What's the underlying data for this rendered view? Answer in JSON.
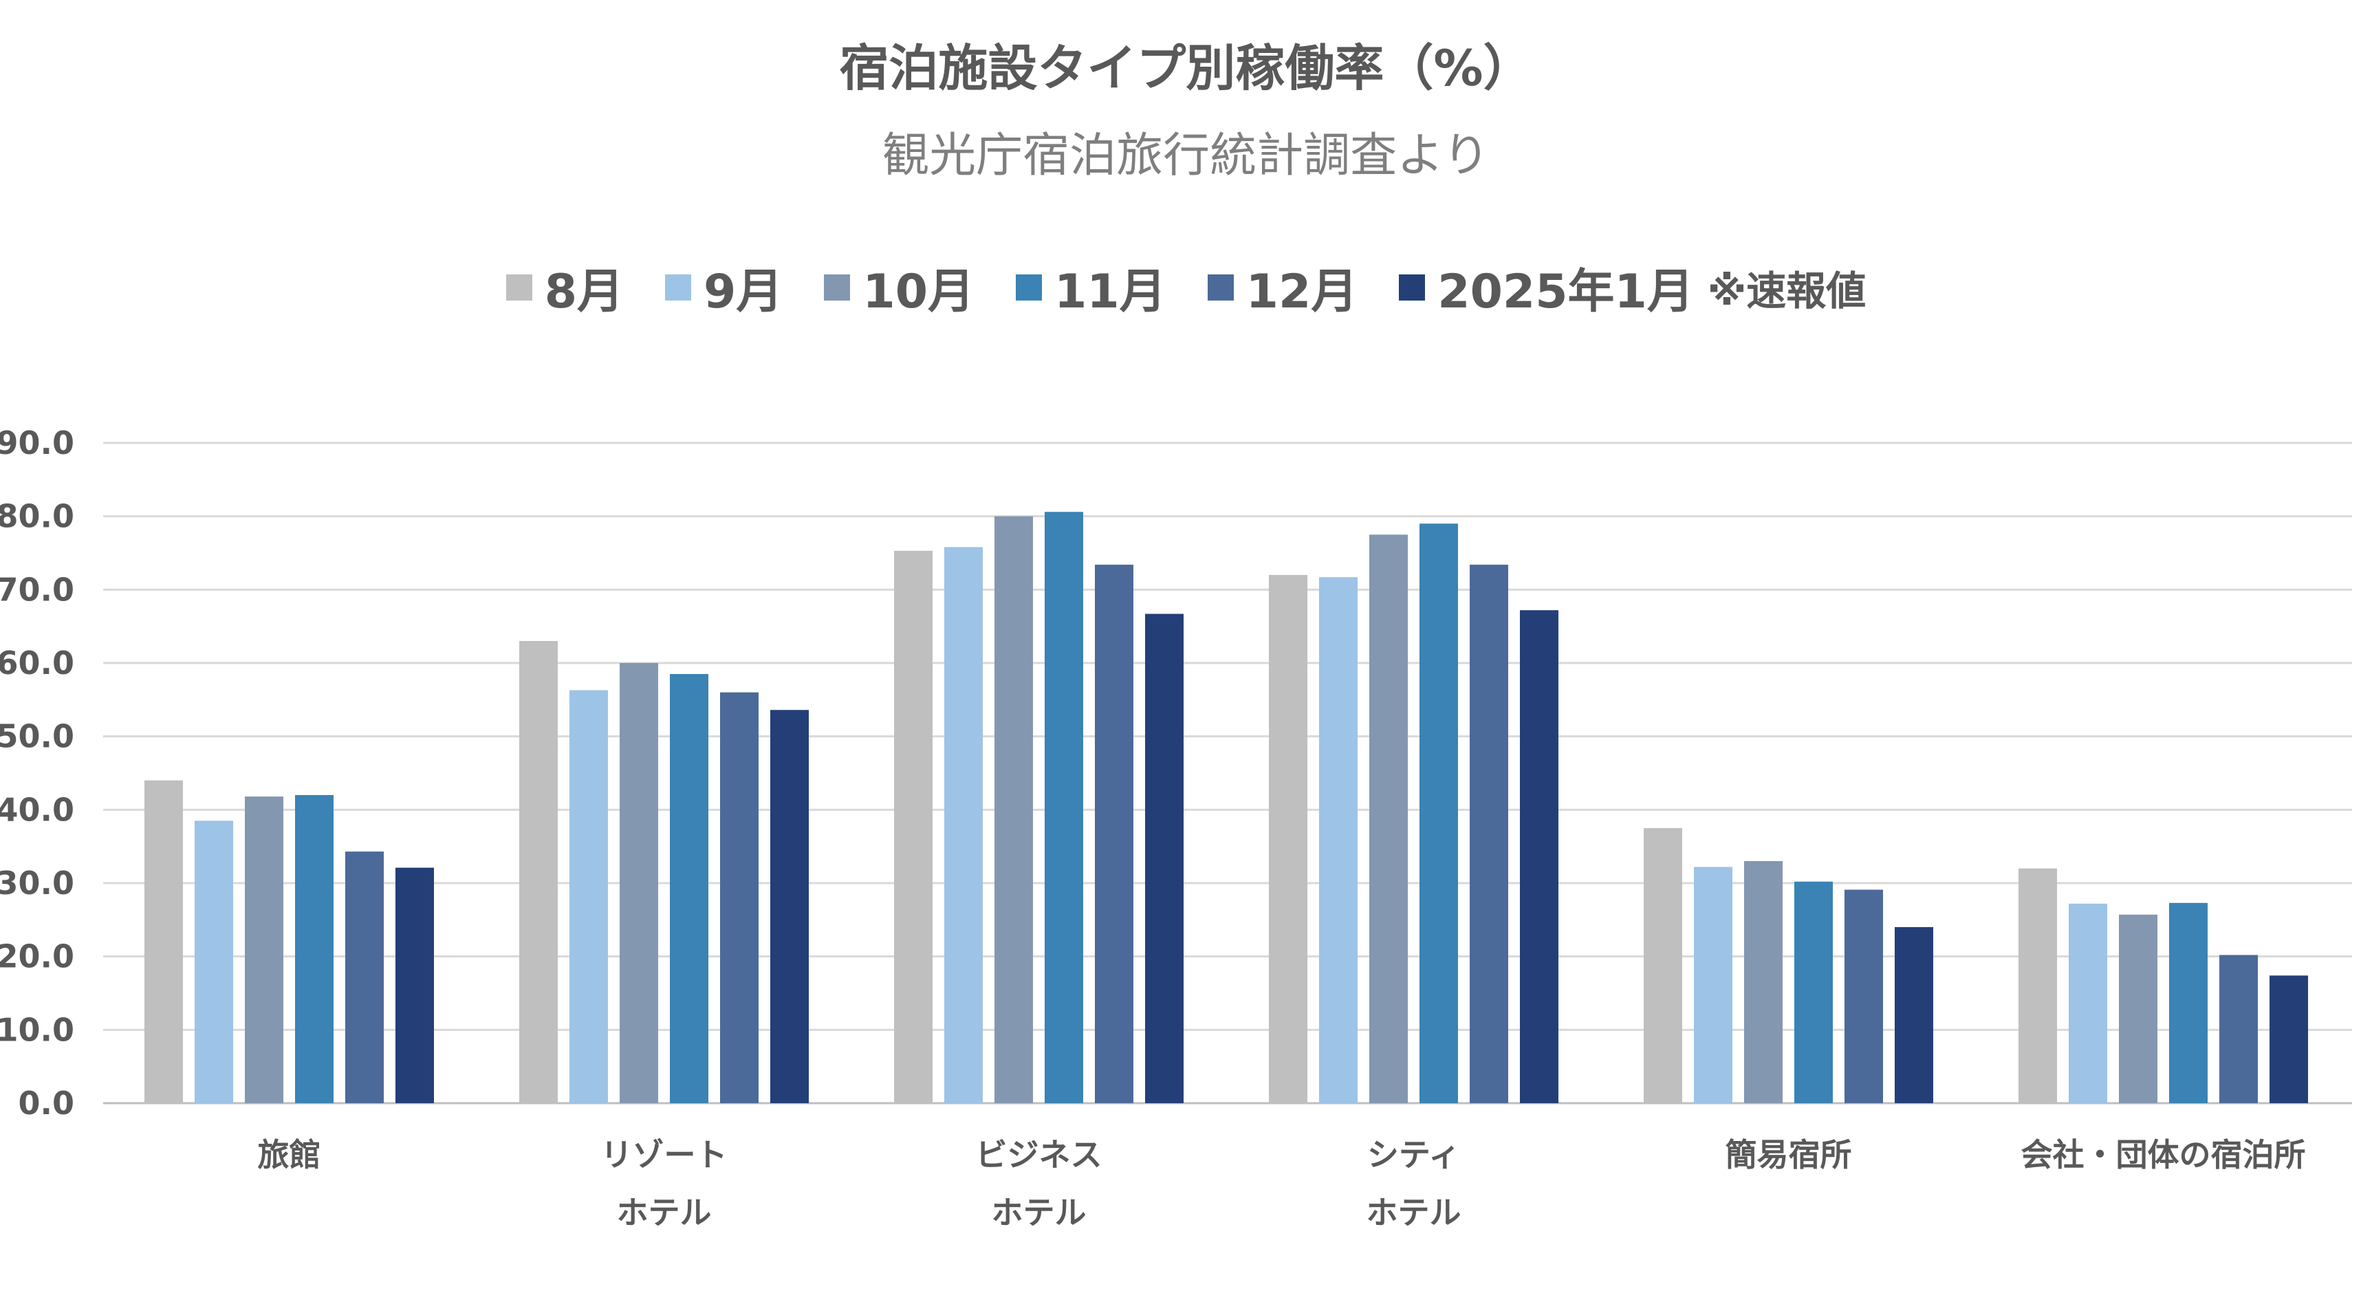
{
  "chart_data": {
    "type": "bar",
    "title": "宿泊施設タイプ別稼働率（%）",
    "subtitle": "観光庁宿泊旅行統計調査より",
    "legend_note": "※速報値",
    "legend_position": "top",
    "grid": true,
    "ylim": [
      0,
      90
    ],
    "y_ticks": [
      "0.0",
      "10.0",
      "20.0",
      "30.0",
      "40.0",
      "50.0",
      "60.0",
      "70.0",
      "80.0",
      "90.0"
    ],
    "categories": [
      [
        "旅館"
      ],
      [
        "リゾート",
        "ホテル"
      ],
      [
        "ビジネス",
        "ホテル"
      ],
      [
        "シティ",
        "ホテル"
      ],
      [
        "簡易宿所"
      ],
      [
        "会社・団体の宿泊所"
      ]
    ],
    "series": [
      {
        "name": "8月",
        "color": "#bfbfbf",
        "values": [
          44.0,
          63.0,
          75.3,
          72.0,
          37.5,
          32.0
        ]
      },
      {
        "name": "9月",
        "color": "#9dc3e6",
        "values": [
          38.5,
          56.3,
          75.8,
          71.7,
          32.2,
          27.2
        ]
      },
      {
        "name": "10月",
        "color": "#8497b0",
        "values": [
          41.8,
          60.0,
          80.0,
          77.5,
          33.0,
          25.7
        ]
      },
      {
        "name": "11月",
        "color": "#3a83b4",
        "values": [
          42.0,
          58.5,
          80.6,
          79.0,
          30.2,
          27.3
        ]
      },
      {
        "name": "12月",
        "color": "#4b6a9a",
        "values": [
          34.3,
          56.0,
          73.4,
          73.4,
          29.1,
          20.2
        ]
      },
      {
        "name": "2025年1月",
        "color": "#243f78",
        "values": [
          32.1,
          53.6,
          66.7,
          67.2,
          24.0,
          17.4
        ]
      }
    ]
  }
}
